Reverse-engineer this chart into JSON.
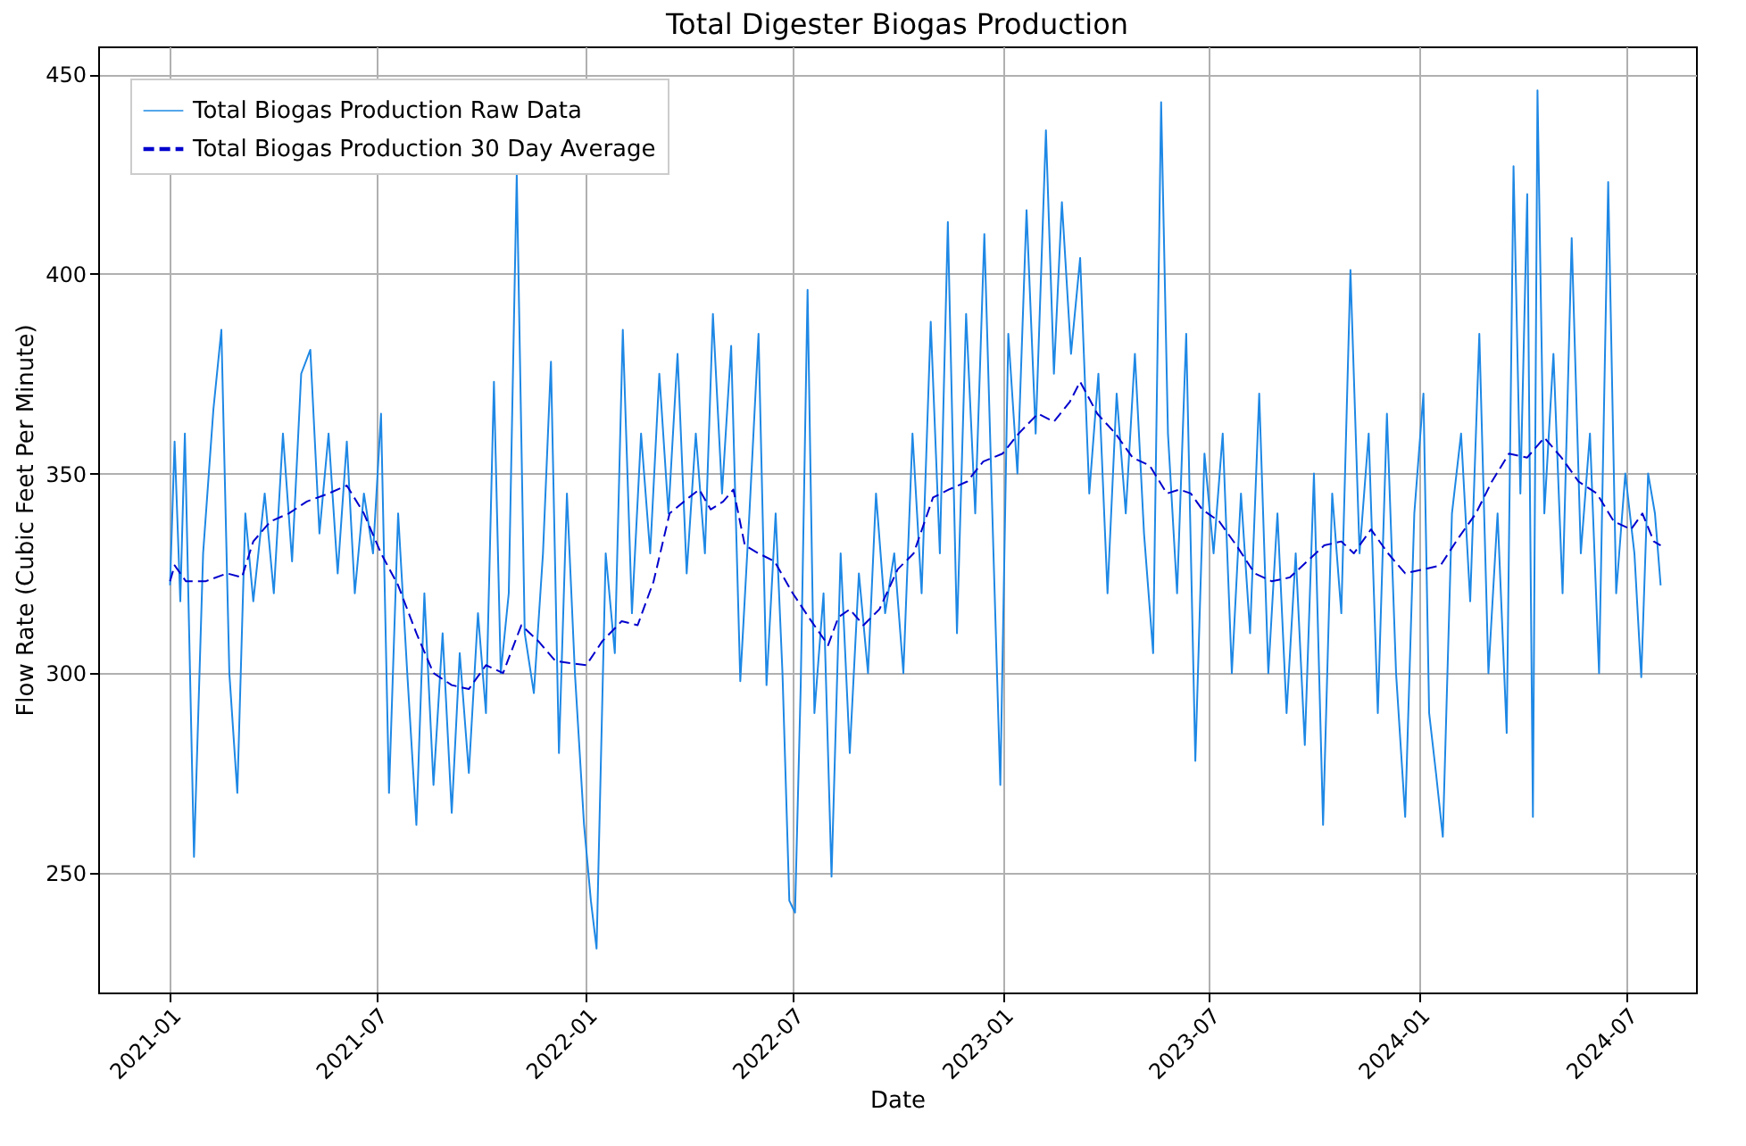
{
  "chart_data": {
    "type": "line",
    "title": "Total Digester Biogas Production",
    "xlabel": "Date",
    "ylabel": "Flow Rate (Cubic Feet Per Minute)",
    "xlim": [
      "2020-10-30",
      "2024-08-31"
    ],
    "xticks": [
      "2021-01",
      "2021-07",
      "2022-01",
      "2022-07",
      "2023-01",
      "2023-07",
      "2024-01",
      "2024-07"
    ],
    "ylim": [
      220,
      457
    ],
    "yticks": [
      250,
      300,
      350,
      400,
      450
    ],
    "grid": true,
    "legend": "top left",
    "marker": "none",
    "series": [
      {
        "name": "Total Biogas Production Raw Data",
        "color": "#1e88e5",
        "line_style": "solid",
        "x": [
          "2021-01-01",
          "2021-01-05",
          "2021-01-10",
          "2021-01-14",
          "2021-01-22",
          "2021-01-30",
          "2021-02-08",
          "2021-02-15",
          "2021-02-22",
          "2021-03-01",
          "2021-03-08",
          "2021-03-15",
          "2021-03-25",
          "2021-04-02",
          "2021-04-10",
          "2021-04-18",
          "2021-04-26",
          "2021-05-04",
          "2021-05-12",
          "2021-05-20",
          "2021-05-28",
          "2021-06-05",
          "2021-06-12",
          "2021-06-20",
          "2021-06-28",
          "2021-07-05",
          "2021-07-12",
          "2021-07-20",
          "2021-07-28",
          "2021-08-05",
          "2021-08-12",
          "2021-08-20",
          "2021-08-28",
          "2021-09-05",
          "2021-09-12",
          "2021-09-20",
          "2021-09-28",
          "2021-10-05",
          "2021-10-12",
          "2021-10-18",
          "2021-10-25",
          "2021-11-01",
          "2021-11-08",
          "2021-11-16",
          "2021-11-24",
          "2021-12-01",
          "2021-12-08",
          "2021-12-15",
          "2021-12-22",
          "2021-12-30",
          "2022-01-05",
          "2022-01-10",
          "2022-01-18",
          "2022-01-26",
          "2022-02-02",
          "2022-02-10",
          "2022-02-18",
          "2022-02-26",
          "2022-03-06",
          "2022-03-14",
          "2022-03-22",
          "2022-03-30",
          "2022-04-07",
          "2022-04-15",
          "2022-04-22",
          "2022-04-30",
          "2022-05-08",
          "2022-05-16",
          "2022-05-24",
          "2022-06-01",
          "2022-06-08",
          "2022-06-16",
          "2022-06-22",
          "2022-06-28",
          "2022-07-03",
          "2022-07-08",
          "2022-07-14",
          "2022-07-20",
          "2022-07-28",
          "2022-08-04",
          "2022-08-12",
          "2022-08-20",
          "2022-08-28",
          "2022-09-05",
          "2022-09-12",
          "2022-09-20",
          "2022-09-28",
          "2022-10-06",
          "2022-10-14",
          "2022-10-22",
          "2022-10-30",
          "2022-11-07",
          "2022-11-14",
          "2022-11-22",
          "2022-11-30",
          "2022-12-08",
          "2022-12-16",
          "2022-12-24",
          "2022-12-30",
          "2023-01-06",
          "2023-01-14",
          "2023-01-22",
          "2023-01-30",
          "2023-02-08",
          "2023-02-15",
          "2023-02-22",
          "2023-03-02",
          "2023-03-10",
          "2023-03-18",
          "2023-03-26",
          "2023-04-03",
          "2023-04-11",
          "2023-04-19",
          "2023-04-27",
          "2023-05-05",
          "2023-05-13",
          "2023-05-20",
          "2023-05-26",
          "2023-06-03",
          "2023-06-11",
          "2023-06-19",
          "2023-06-27",
          "2023-07-05",
          "2023-07-13",
          "2023-07-21",
          "2023-07-29",
          "2023-08-06",
          "2023-08-14",
          "2023-08-22",
          "2023-08-30",
          "2023-09-07",
          "2023-09-15",
          "2023-09-23",
          "2023-10-01",
          "2023-10-09",
          "2023-10-17",
          "2023-10-25",
          "2023-11-02",
          "2023-11-10",
          "2023-11-18",
          "2023-11-26",
          "2023-12-04",
          "2023-12-12",
          "2023-12-20",
          "2023-12-28",
          "2024-01-05",
          "2024-01-10",
          "2024-01-16",
          "2024-01-22",
          "2024-01-30",
          "2024-02-07",
          "2024-02-15",
          "2024-02-23",
          "2024-03-02",
          "2024-03-10",
          "2024-03-18",
          "2024-03-24",
          "2024-03-30",
          "2024-04-05",
          "2024-04-10",
          "2024-04-14",
          "2024-04-20",
          "2024-04-28",
          "2024-05-06",
          "2024-05-14",
          "2024-05-22",
          "2024-05-30",
          "2024-06-07",
          "2024-06-15",
          "2024-06-22",
          "2024-06-30",
          "2024-07-08",
          "2024-07-14",
          "2024-07-20",
          "2024-07-26",
          "2024-07-31"
        ],
        "values": [
          322,
          358,
          318,
          360,
          254,
          330,
          366,
          386,
          300,
          270,
          340,
          318,
          345,
          320,
          360,
          328,
          375,
          381,
          335,
          360,
          325,
          358,
          320,
          345,
          330,
          365,
          270,
          340,
          300,
          262,
          320,
          272,
          310,
          265,
          305,
          275,
          315,
          290,
          373,
          300,
          320,
          425,
          310,
          295,
          330,
          378,
          280,
          345,
          300,
          262,
          243,
          231,
          330,
          305,
          386,
          315,
          360,
          330,
          375,
          340,
          380,
          325,
          360,
          330,
          390,
          345,
          382,
          298,
          340,
          385,
          297,
          340,
          300,
          243,
          240,
          297,
          396,
          290,
          320,
          249,
          330,
          280,
          325,
          300,
          345,
          315,
          330,
          300,
          360,
          320,
          388,
          330,
          413,
          310,
          390,
          340,
          410,
          330,
          272,
          385,
          350,
          416,
          360,
          436,
          375,
          418,
          380,
          404,
          345,
          375,
          320,
          370,
          340,
          380,
          335,
          305,
          443,
          360,
          320,
          385,
          278,
          355,
          330,
          360,
          300,
          345,
          310,
          370,
          300,
          340,
          290,
          330,
          282,
          350,
          262,
          345,
          315,
          401,
          330,
          360,
          290,
          365,
          300,
          264,
          340,
          370,
          290,
          275,
          259,
          340,
          360,
          318,
          385,
          300,
          340,
          285,
          427,
          345,
          420,
          264,
          446,
          340,
          380,
          320,
          409,
          330,
          360,
          300,
          423,
          320,
          350,
          330,
          299,
          350,
          340,
          322
        ]
      },
      {
        "name": "Total Biogas Production 30 Day Average",
        "color": "#0000cd",
        "line_style": "dashed",
        "x": [
          "2021-01-01",
          "2021-01-05",
          "2021-01-15",
          "2021-02-01",
          "2021-02-20",
          "2021-03-05",
          "2021-03-15",
          "2021-03-30",
          "2021-04-15",
          "2021-05-01",
          "2021-05-20",
          "2021-06-05",
          "2021-06-20",
          "2021-07-05",
          "2021-07-20",
          "2021-08-05",
          "2021-08-20",
          "2021-09-05",
          "2021-09-20",
          "2021-10-05",
          "2021-10-20",
          "2021-11-05",
          "2021-11-20",
          "2021-12-05",
          "2022-01-01",
          "2022-01-15",
          "2022-02-01",
          "2022-02-15",
          "2022-03-01",
          "2022-03-15",
          "2022-04-01",
          "2022-04-10",
          "2022-04-20",
          "2022-05-01",
          "2022-05-10",
          "2022-05-20",
          "2022-06-01",
          "2022-06-15",
          "2022-07-01",
          "2022-07-15",
          "2022-08-01",
          "2022-08-10",
          "2022-08-20",
          "2022-09-01",
          "2022-09-15",
          "2022-10-01",
          "2022-10-15",
          "2022-11-01",
          "2022-11-15",
          "2022-12-01",
          "2022-12-15",
          "2023-01-01",
          "2023-01-15",
          "2023-02-01",
          "2023-02-15",
          "2023-03-01",
          "2023-03-10",
          "2023-03-25",
          "2023-04-10",
          "2023-04-25",
          "2023-05-10",
          "2023-05-25",
          "2023-06-05",
          "2023-06-15",
          "2023-06-25",
          "2023-07-10",
          "2023-07-25",
          "2023-08-10",
          "2023-08-25",
          "2023-09-10",
          "2023-09-25",
          "2023-10-10",
          "2023-10-25",
          "2023-11-05",
          "2023-11-20",
          "2023-12-05",
          "2023-12-20",
          "2024-01-05",
          "2024-01-20",
          "2024-02-05",
          "2024-02-20",
          "2024-03-05",
          "2024-03-20",
          "2024-04-05",
          "2024-04-20",
          "2024-05-05",
          "2024-05-20",
          "2024-06-05",
          "2024-06-20",
          "2024-07-05",
          "2024-07-15",
          "2024-07-25",
          "2024-07-31"
        ],
        "values": [
          323,
          327,
          323,
          323,
          325,
          324,
          333,
          338,
          340,
          343,
          345,
          347,
          340,
          330,
          322,
          310,
          300,
          297,
          296,
          302,
          300,
          312,
          308,
          303,
          302,
          308,
          313,
          312,
          323,
          340,
          344,
          346,
          341,
          343,
          346,
          332,
          330,
          328,
          320,
          314,
          307,
          314,
          316,
          312,
          316,
          326,
          330,
          344,
          346,
          348,
          353,
          355,
          360,
          365,
          363,
          368,
          373,
          365,
          360,
          354,
          352,
          345,
          346,
          345,
          341,
          338,
          332,
          325,
          323,
          324,
          328,
          332,
          333,
          330,
          336,
          330,
          325,
          326,
          327,
          334,
          340,
          348,
          355,
          354,
          359,
          354,
          348,
          345,
          338,
          336,
          340,
          333,
          332
        ]
      }
    ]
  }
}
